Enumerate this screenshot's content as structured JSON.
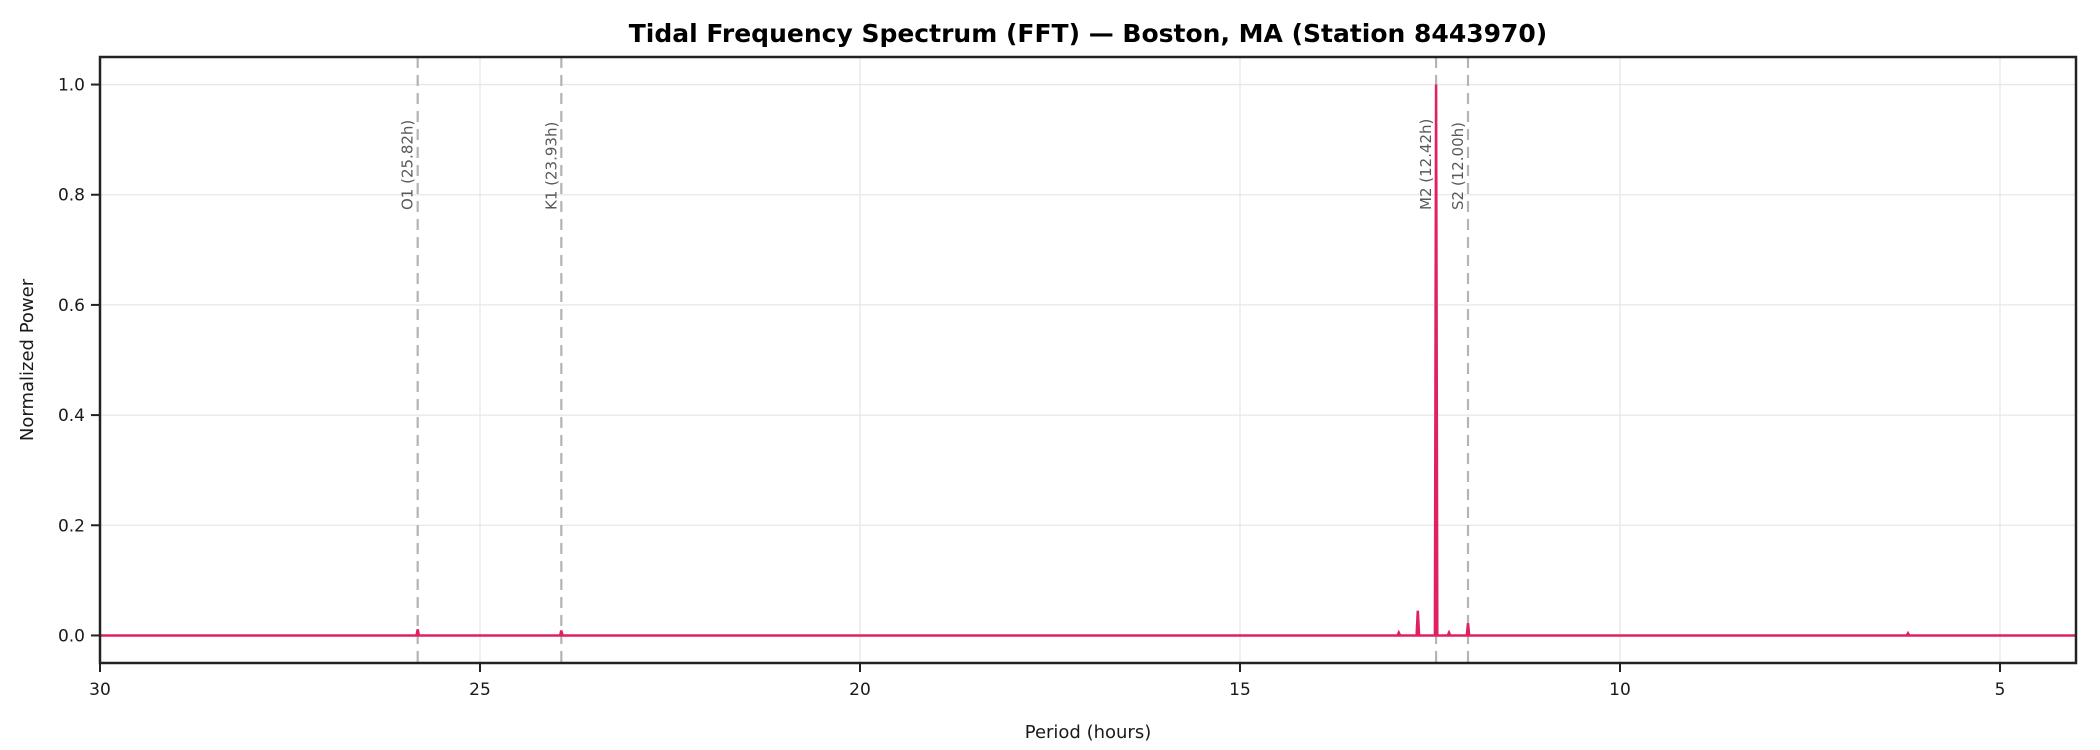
{
  "figure": {
    "title": "Tidal Frequency Spectrum (FFT) — Boston, MA (Station 8443970)"
  },
  "chart_data": {
    "type": "line",
    "title": "Tidal Frequency Spectrum (FFT) — Boston, MA (Station 8443970)",
    "xlabel": "Period (hours)",
    "ylabel": "Normalized Power",
    "x_axis": {
      "ticks": [
        30,
        25,
        20,
        15,
        10,
        5
      ],
      "tick_labels": [
        "30",
        "25",
        "20",
        "15",
        "10",
        "5"
      ],
      "range": [
        30,
        4
      ],
      "reversed": true
    },
    "y_axis": {
      "ticks": [
        0.0,
        0.2,
        0.4,
        0.6,
        0.8,
        1.0
      ],
      "tick_labels": [
        "0.0",
        "0.2",
        "0.4",
        "0.6",
        "0.8",
        "1.0"
      ],
      "range": [
        -0.05,
        1.05
      ]
    },
    "grid": true,
    "baseline_power": 0.0,
    "spectrum_peaks": [
      {
        "period_hours": 25.82,
        "power": 0.011
      },
      {
        "period_hours": 23.93,
        "power": 0.009
      },
      {
        "period_hours": 12.91,
        "power": 0.005
      },
      {
        "period_hours": 12.66,
        "power": 0.045
      },
      {
        "period_hours": 12.42,
        "power": 1.0
      },
      {
        "period_hours": 12.25,
        "power": 0.005
      },
      {
        "period_hours": 12.0,
        "power": 0.022
      },
      {
        "period_hours": 6.21,
        "power": 0.004
      }
    ],
    "constituent_markers": [
      {
        "label": "O1 (25.82h)",
        "period_hours": 25.82
      },
      {
        "label": "K1 (23.93h)",
        "period_hours": 23.93
      },
      {
        "label": "M2 (12.42h)",
        "period_hours": 12.42
      },
      {
        "label": "S2 (12.00h)",
        "period_hours": 12.0
      }
    ],
    "colors": {
      "line": "#e0215f",
      "marker_line": "#b4b4b4",
      "marker_label": "#595959",
      "grid": "#e7e7e7",
      "axis": "#222222",
      "tick_label": "#1a1a1a"
    }
  }
}
